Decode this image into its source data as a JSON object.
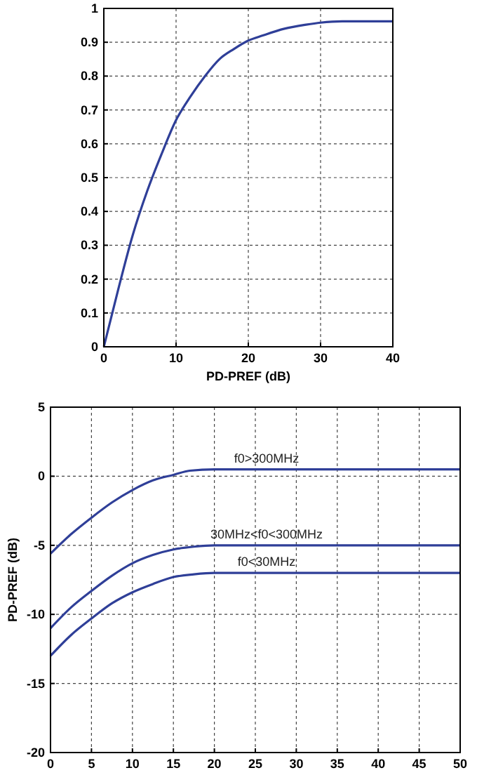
{
  "chart_data": [
    {
      "type": "line",
      "xlabel": "PD-PREF  (dB)",
      "xlim": [
        0,
        40
      ],
      "ylim": [
        0,
        1
      ],
      "xticks": [
        0,
        10,
        20,
        30,
        40
      ],
      "yticks": [
        0,
        0.1,
        0.2,
        0.3,
        0.4,
        0.5,
        0.6,
        0.7,
        0.8,
        0.9,
        1
      ],
      "grid": true,
      "series": [
        {
          "color": "#2f3f98",
          "x": [
            0,
            2,
            4,
            6,
            8,
            10,
            12,
            14,
            16,
            18,
            20,
            22,
            25,
            28,
            30,
            33,
            40
          ],
          "values": [
            0,
            0.17,
            0.33,
            0.46,
            0.57,
            0.67,
            0.74,
            0.8,
            0.85,
            0.88,
            0.905,
            0.92,
            0.94,
            0.952,
            0.958,
            0.962,
            0.962
          ]
        }
      ]
    },
    {
      "type": "line",
      "ylabel": "PD-PREF (dB)",
      "xlim": [
        0,
        50
      ],
      "ylim": [
        -20,
        5
      ],
      "xticks": [
        0,
        5,
        10,
        15,
        20,
        25,
        30,
        35,
        40,
        45,
        50
      ],
      "yticks": [
        -20,
        -15,
        -10,
        -5,
        0,
        5
      ],
      "grid": true,
      "series": [
        {
          "name": "f0>300MHz",
          "color": "#2f3f98",
          "x": [
            0,
            2.5,
            5,
            7.5,
            10,
            12.5,
            15,
            17,
            20,
            50
          ],
          "values": [
            -5.6,
            -4.2,
            -3,
            -1.9,
            -1,
            -0.3,
            0.1,
            0.4,
            0.5,
            0.5
          ]
        },
        {
          "name": "30MHz<f0<300MHz",
          "color": "#2f3f98",
          "x": [
            0,
            2.5,
            5,
            7.5,
            10,
            12.5,
            15,
            17.5,
            20,
            50
          ],
          "values": [
            -11,
            -9.5,
            -8.3,
            -7.2,
            -6.3,
            -5.7,
            -5.3,
            -5.1,
            -5,
            -5
          ]
        },
        {
          "name": "f0<30MHz",
          "color": "#2f3f98",
          "x": [
            0,
            2.5,
            5,
            7.5,
            10,
            12.5,
            15,
            17.5,
            20,
            50
          ],
          "values": [
            -13,
            -11.5,
            -10.3,
            -9.2,
            -8.4,
            -7.8,
            -7.3,
            -7.1,
            -7,
            -7
          ]
        }
      ]
    }
  ]
}
